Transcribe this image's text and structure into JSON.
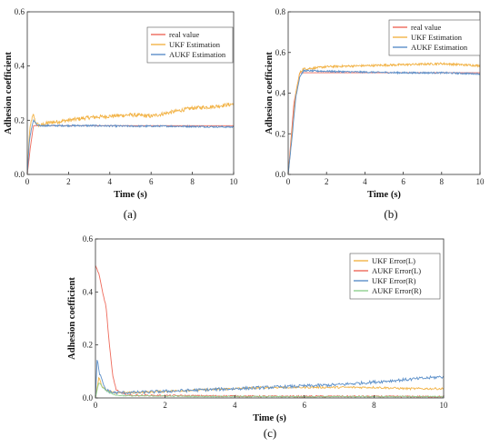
{
  "chart_data": [
    {
      "panel_id": "a",
      "type": "line",
      "caption": "(a)",
      "xlabel": "Time (s)",
      "ylabel": "Adhesion coefficient",
      "xlim": [
        0,
        10
      ],
      "ylim": [
        0,
        0.6
      ],
      "xticks": [
        "0",
        "2",
        "4",
        "6",
        "8",
        "10"
      ],
      "yticks": [
        "0.0",
        "0.2",
        "0.4",
        "0.6"
      ],
      "legend_position": "top-right",
      "series": [
        {
          "name": "real value",
          "color": "#ee6a5b",
          "x": [
            0,
            0.15,
            0.3,
            10
          ],
          "y": [
            0,
            0.1,
            0.18,
            0.18
          ]
        },
        {
          "name": "UKF Estimation",
          "color": "#f2b347",
          "x": [
            0,
            0.1,
            0.2,
            0.3,
            0.4,
            0.6,
            1,
            2,
            3,
            4,
            5,
            6,
            7,
            8,
            9,
            10
          ],
          "y": [
            0,
            0.15,
            0.2,
            0.22,
            0.19,
            0.18,
            0.19,
            0.2,
            0.21,
            0.215,
            0.22,
            0.215,
            0.23,
            0.245,
            0.25,
            0.26
          ],
          "noise": 0.007
        },
        {
          "name": "AUKF Estimation",
          "color": "#5b8fc9",
          "x": [
            0,
            0.1,
            0.2,
            0.3,
            0.5,
            1,
            3,
            5,
            7,
            9,
            10
          ],
          "y": [
            0,
            0.12,
            0.17,
            0.2,
            0.18,
            0.18,
            0.18,
            0.178,
            0.178,
            0.176,
            0.175
          ],
          "noise": 0.003
        }
      ]
    },
    {
      "panel_id": "b",
      "type": "line",
      "caption": "(b)",
      "xlabel": "Time (s)",
      "ylabel": "Adhesion coefficient",
      "xlim": [
        0,
        10
      ],
      "ylim": [
        0,
        0.8
      ],
      "xticks": [
        "0",
        "2",
        "4",
        "6",
        "8",
        "10"
      ],
      "yticks": [
        "0.0",
        "0.2",
        "0.4",
        "0.6",
        "0.8"
      ],
      "legend_position": "top-right",
      "series": [
        {
          "name": "real value",
          "color": "#ee6a5b",
          "x": [
            0,
            0.3,
            0.6,
            10
          ],
          "y": [
            0,
            0.35,
            0.5,
            0.5
          ]
        },
        {
          "name": "UKF Estimation",
          "color": "#f2b347",
          "x": [
            0,
            0.2,
            0.4,
            0.6,
            0.8,
            1,
            2,
            4,
            6,
            8,
            9,
            10
          ],
          "y": [
            0,
            0.2,
            0.4,
            0.5,
            0.52,
            0.52,
            0.53,
            0.535,
            0.54,
            0.545,
            0.54,
            0.535
          ],
          "noise": 0.005
        },
        {
          "name": "AUKF Estimation",
          "color": "#5b8fc9",
          "x": [
            0,
            0.2,
            0.4,
            0.6,
            0.8,
            1,
            3,
            6,
            8,
            10
          ],
          "y": [
            0,
            0.18,
            0.38,
            0.48,
            0.51,
            0.51,
            0.505,
            0.5,
            0.5,
            0.495
          ],
          "noise": 0.004
        }
      ]
    },
    {
      "panel_id": "c",
      "type": "line",
      "caption": "(c)",
      "xlabel": "Time (s)",
      "ylabel": "Adhesion coefficient",
      "xlim": [
        0,
        10
      ],
      "ylim": [
        0,
        0.6
      ],
      "xticks": [
        "0",
        "2",
        "4",
        "6",
        "8",
        "10"
      ],
      "yticks": [
        "0.0",
        "0.2",
        "0.4",
        "0.6"
      ],
      "legend_position": "top-right",
      "series": [
        {
          "name": "UKF Error(L)",
          "color": "#f2b347",
          "x": [
            0,
            0.1,
            0.2,
            0.3,
            0.5,
            0.8,
            1,
            2,
            3,
            4,
            5,
            6,
            7,
            8,
            9,
            10
          ],
          "y": [
            0,
            0.08,
            0.04,
            0.03,
            0.02,
            0.02,
            0.02,
            0.025,
            0.03,
            0.035,
            0.04,
            0.04,
            0.04,
            0.04,
            0.035,
            0.035
          ],
          "noise": 0.004
        },
        {
          "name": "AUKF Error(L)",
          "color": "#ee6a5b",
          "x": [
            0,
            0.1,
            0.2,
            0.3,
            0.4,
            0.5,
            0.6,
            0.8,
            1,
            3,
            5,
            7,
            10
          ],
          "y": [
            0.5,
            0.47,
            0.4,
            0.35,
            0.2,
            0.08,
            0.03,
            0.015,
            0.01,
            0.008,
            0.006,
            0.006,
            0.005
          ],
          "noise": 0.003
        },
        {
          "name": "UKF Error(R)",
          "color": "#5b8fc9",
          "x": [
            0,
            0.05,
            0.1,
            0.2,
            0.3,
            0.5,
            1,
            2,
            3,
            4,
            5,
            6,
            7,
            8,
            9,
            10
          ],
          "y": [
            0,
            0.15,
            0.1,
            0.06,
            0.03,
            0.02,
            0.02,
            0.025,
            0.03,
            0.035,
            0.04,
            0.045,
            0.05,
            0.06,
            0.07,
            0.08
          ],
          "noise": 0.006
        },
        {
          "name": "AUKF Error(R)",
          "color": "#8fcf8f",
          "x": [
            0,
            0.1,
            0.2,
            0.4,
            0.6,
            1,
            3,
            5,
            7,
            10
          ],
          "y": [
            0,
            0.06,
            0.04,
            0.02,
            0.01,
            0.008,
            0.006,
            0.005,
            0.005,
            0.005
          ],
          "noise": 0.002
        }
      ]
    }
  ]
}
